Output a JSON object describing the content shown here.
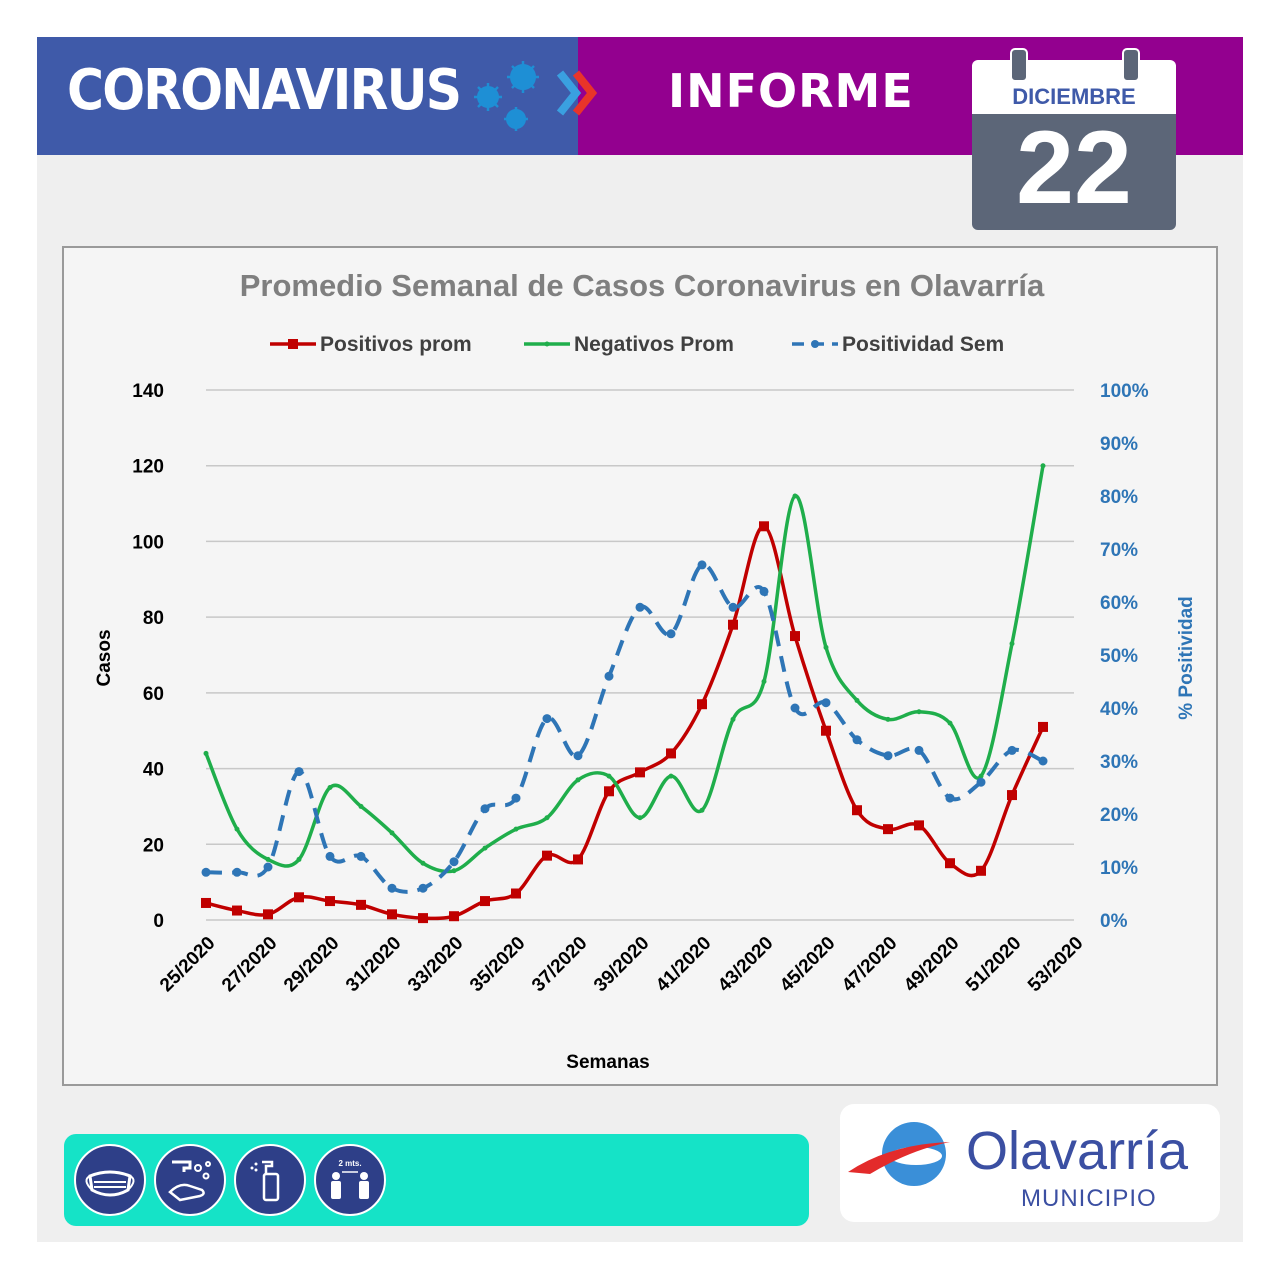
{
  "header": {
    "left_title": "CORONAVIRUS",
    "right_title": "INFORME",
    "date_month": "DICIEMBRE",
    "date_day": "22"
  },
  "logo": {
    "name": "Olavarría",
    "subtitle": "MUNICIPIO"
  },
  "care_icons": [
    "mask-icon",
    "handwash-icon",
    "sanitizer-icon",
    "distance-icon"
  ],
  "distance_label": "2 mts.",
  "colors": {
    "header_blue": "#3f5aa9",
    "header_purple": "#93008f",
    "positivos": "#c00000",
    "negativos": "#1fae4b",
    "positividad": "#2e75b6",
    "bottom_bar": "#15e3c7"
  },
  "chart_data": {
    "type": "line",
    "title": "Promedio Semanal de Casos Coronavirus en Olavarría",
    "xlabel": "Semanas",
    "ylabel": "Casos",
    "y2label": "% Positividad",
    "ylim": [
      0,
      140
    ],
    "y2lim": [
      0,
      1
    ],
    "yticks": [
      "0",
      "20",
      "40",
      "60",
      "80",
      "100",
      "120",
      "140"
    ],
    "y2ticks": [
      "0%",
      "10%",
      "20%",
      "30%",
      "40%",
      "50%",
      "60%",
      "70%",
      "80%",
      "90%",
      "100%"
    ],
    "grid": true,
    "legend_position": "top",
    "x_tick_labels": [
      "25/2020",
      "27/2020",
      "29/2020",
      "31/2020",
      "33/2020",
      "35/2020",
      "37/2020",
      "39/2020",
      "41/2020",
      "43/2020",
      "45/2020",
      "47/2020",
      "49/2020",
      "51/2020",
      "53/2020"
    ],
    "x_weeks": [
      25,
      26,
      27,
      28,
      29,
      30,
      31,
      32,
      33,
      34,
      35,
      36,
      37,
      38,
      39,
      40,
      41,
      42,
      43,
      44,
      45,
      46,
      47,
      48,
      49,
      50,
      51,
      52
    ],
    "series": [
      {
        "name": "Positivos prom",
        "axis": "left",
        "values": [
          4.5,
          2.5,
          1.5,
          6,
          5,
          4,
          1.5,
          0.5,
          1,
          5,
          7,
          17,
          16,
          34,
          39,
          44,
          57,
          78,
          104,
          75,
          50,
          29,
          24,
          25,
          15,
          13,
          33,
          51
        ]
      },
      {
        "name": "Negativos Prom",
        "axis": "left",
        "values": [
          44,
          24,
          16,
          16,
          35,
          30,
          23,
          15,
          13,
          19,
          24,
          27,
          37,
          38,
          27,
          38,
          29,
          53,
          63,
          112,
          72,
          58,
          53,
          55,
          52,
          38,
          73,
          120
        ]
      },
      {
        "name": "Positividad Sem",
        "axis": "right",
        "values": [
          0.09,
          0.09,
          0.1,
          0.28,
          0.12,
          0.12,
          0.06,
          0.06,
          0.11,
          0.21,
          0.23,
          0.38,
          0.31,
          0.46,
          0.59,
          0.54,
          0.67,
          0.59,
          0.62,
          0.4,
          0.41,
          0.34,
          0.31,
          0.32,
          0.23,
          0.26,
          0.32,
          0.3
        ]
      }
    ]
  }
}
